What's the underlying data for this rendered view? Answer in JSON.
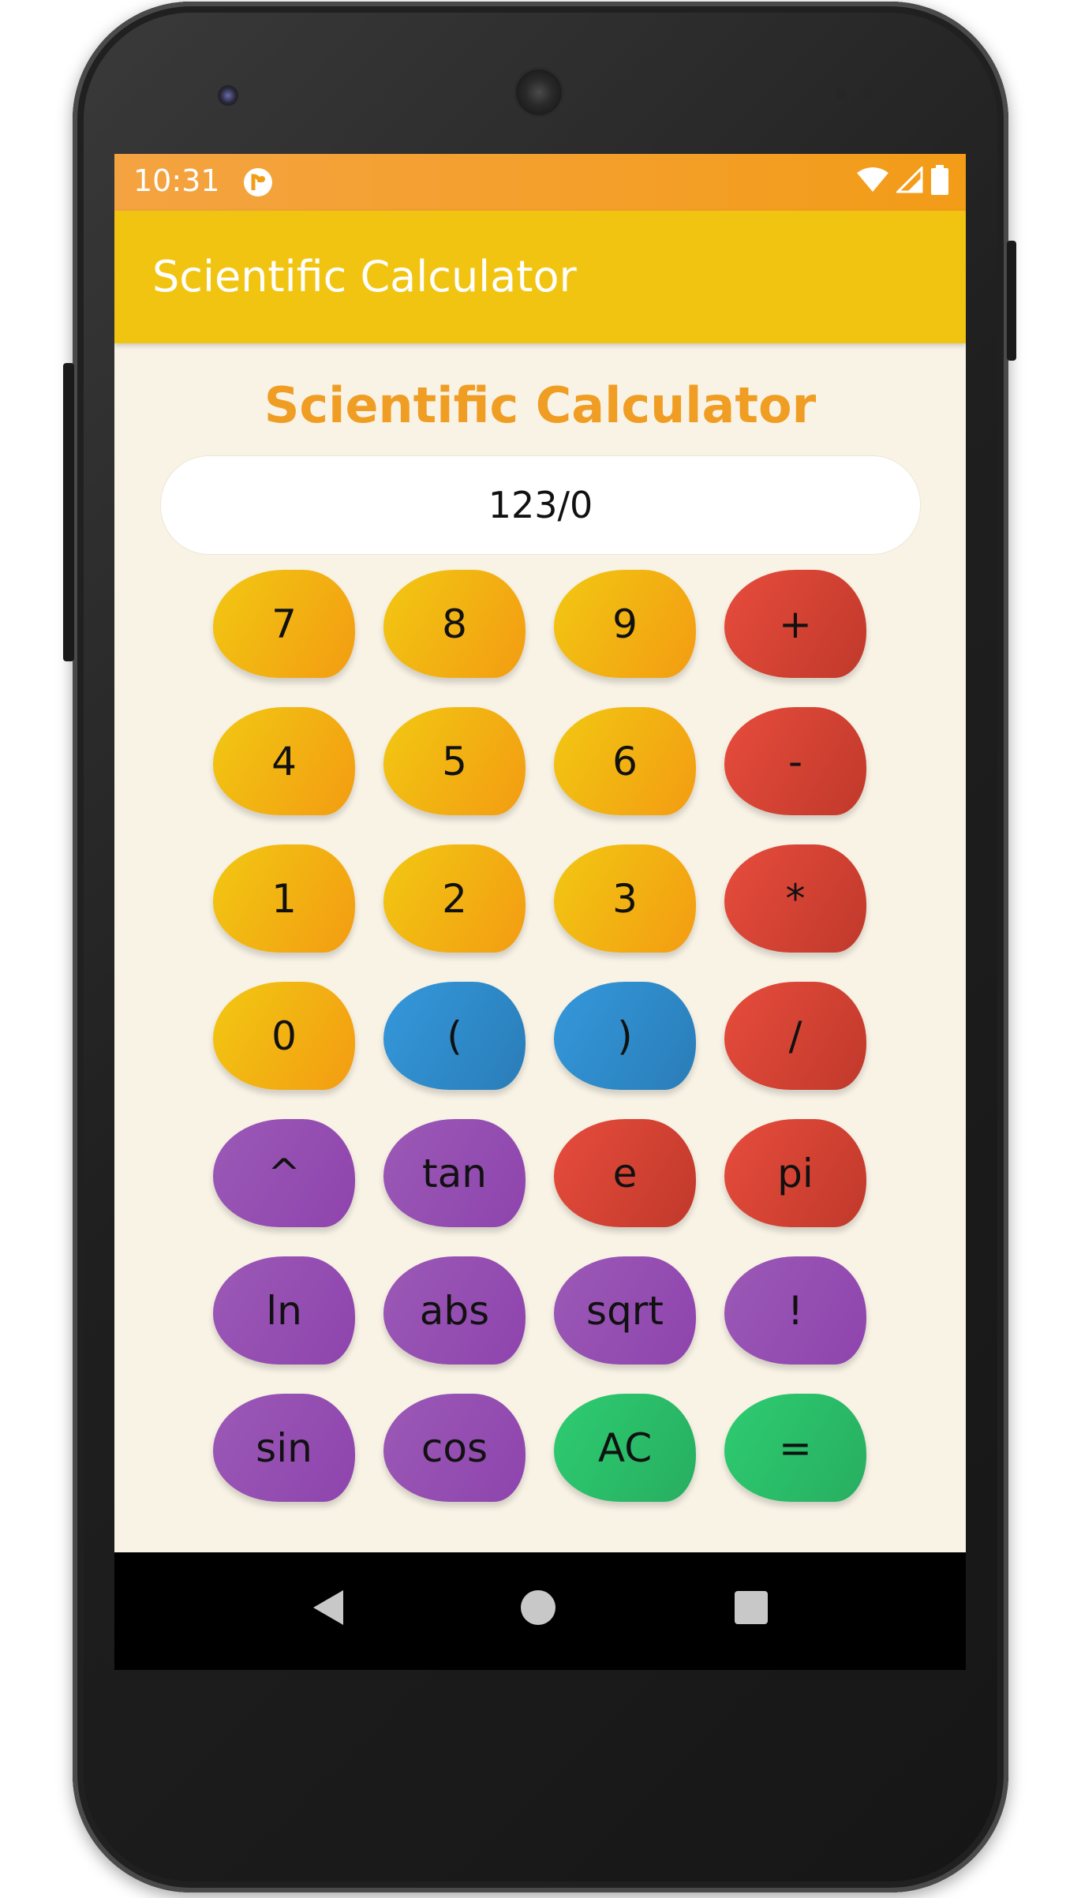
{
  "status_bar": {
    "time": "10:31",
    "icons": [
      "app-notification-icon",
      "wifi-icon",
      "signal-icon",
      "battery-icon"
    ]
  },
  "app_bar": {
    "title": "Scientific Calculator",
    "color": "#f2c412"
  },
  "main": {
    "heading": "Scientific Calculator",
    "heading_color": "#f09d24",
    "display_value": "123/0",
    "background": "#f9f3e6"
  },
  "keypad": [
    {
      "label": "7",
      "color": "yellow"
    },
    {
      "label": "8",
      "color": "yellow"
    },
    {
      "label": "9",
      "color": "yellow"
    },
    {
      "label": "+",
      "color": "red"
    },
    {
      "label": "4",
      "color": "yellow"
    },
    {
      "label": "5",
      "color": "yellow"
    },
    {
      "label": "6",
      "color": "yellow"
    },
    {
      "label": "-",
      "color": "red"
    },
    {
      "label": "1",
      "color": "yellow"
    },
    {
      "label": "2",
      "color": "yellow"
    },
    {
      "label": "3",
      "color": "yellow"
    },
    {
      "label": "*",
      "color": "red"
    },
    {
      "label": "0",
      "color": "yellow"
    },
    {
      "label": "(",
      "color": "blue"
    },
    {
      "label": ")",
      "color": "blue"
    },
    {
      "label": "/",
      "color": "red"
    },
    {
      "label": "^",
      "color": "purple"
    },
    {
      "label": "tan",
      "color": "purple"
    },
    {
      "label": "e",
      "color": "red"
    },
    {
      "label": "pi",
      "color": "red"
    },
    {
      "label": "ln",
      "color": "purple"
    },
    {
      "label": "abs",
      "color": "purple"
    },
    {
      "label": "sqrt",
      "color": "purple"
    },
    {
      "label": "!",
      "color": "purple"
    },
    {
      "label": "sin",
      "color": "purple"
    },
    {
      "label": "cos",
      "color": "purple"
    },
    {
      "label": "AC",
      "color": "green"
    },
    {
      "label": "=",
      "color": "green"
    }
  ],
  "nav_bar": {
    "icons": [
      "back-icon",
      "home-icon",
      "recents-icon"
    ]
  }
}
